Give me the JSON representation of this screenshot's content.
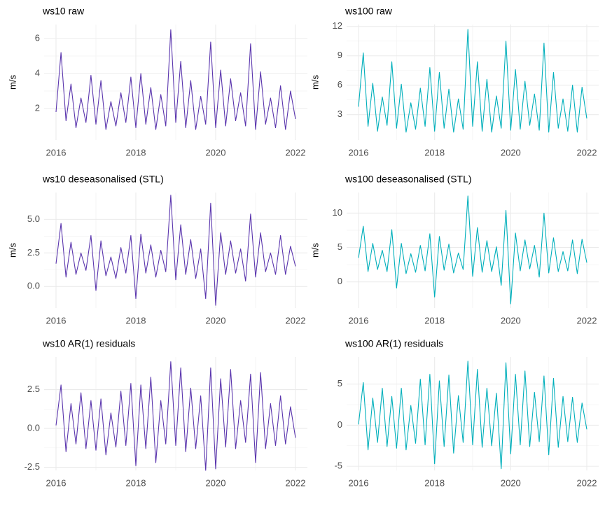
{
  "chart_data": [
    {
      "type": "line",
      "title": "ws10 raw",
      "y_label": "m/s",
      "color": "#5a35ad",
      "x": [
        2016,
        2016.125,
        2016.25,
        2016.375,
        2016.5,
        2016.625,
        2016.75,
        2016.875,
        2017,
        2017.125,
        2017.25,
        2017.375,
        2017.5,
        2017.625,
        2017.75,
        2017.875,
        2018,
        2018.125,
        2018.25,
        2018.375,
        2018.5,
        2018.625,
        2018.75,
        2018.875,
        2019,
        2019.125,
        2019.25,
        2019.375,
        2019.5,
        2019.625,
        2019.75,
        2019.875,
        2020,
        2020.125,
        2020.25,
        2020.375,
        2020.5,
        2020.625,
        2020.75,
        2020.875,
        2021,
        2021.125,
        2021.25,
        2021.375,
        2021.5,
        2021.625,
        2021.75,
        2021.875,
        2022
      ],
      "values": [
        1.8,
        5.2,
        1.3,
        3.4,
        0.9,
        2.6,
        1.2,
        3.9,
        1.1,
        3.6,
        0.8,
        2.4,
        1.0,
        2.9,
        1.2,
        3.8,
        0.9,
        4.0,
        1.1,
        3.2,
        0.8,
        2.8,
        1.0,
        6.5,
        1.2,
        4.7,
        0.9,
        3.6,
        0.8,
        2.7,
        1.1,
        5.8,
        0.9,
        4.2,
        1.0,
        3.7,
        1.3,
        2.9,
        1.0,
        5.7,
        0.8,
        4.1,
        1.1,
        2.6,
        0.9,
        3.3,
        0.8,
        3.0,
        1.4
      ],
      "xlim": [
        2016,
        2022
      ],
      "xticks": [
        2016,
        2018,
        2020,
        2022
      ],
      "ylim": [
        0.2,
        6.8
      ],
      "yticks": [
        2,
        4,
        6
      ],
      "grid": true
    },
    {
      "type": "line",
      "title": "ws100 raw",
      "y_label": "m/s",
      "color": "#00afbb",
      "x": [
        2016,
        2016.125,
        2016.25,
        2016.375,
        2016.5,
        2016.625,
        2016.75,
        2016.875,
        2017,
        2017.125,
        2017.25,
        2017.375,
        2017.5,
        2017.625,
        2017.75,
        2017.875,
        2018,
        2018.125,
        2018.25,
        2018.375,
        2018.5,
        2018.625,
        2018.75,
        2018.875,
        2019,
        2019.125,
        2019.25,
        2019.375,
        2019.5,
        2019.625,
        2019.75,
        2019.875,
        2020,
        2020.125,
        2020.25,
        2020.375,
        2020.5,
        2020.625,
        2020.75,
        2020.875,
        2021,
        2021.125,
        2021.25,
        2021.375,
        2021.5,
        2021.625,
        2021.75,
        2021.875,
        2022
      ],
      "values": [
        3.8,
        9.3,
        1.8,
        6.2,
        1.3,
        4.8,
        1.9,
        8.4,
        1.6,
        6.1,
        1.2,
        4.2,
        1.5,
        5.7,
        1.8,
        7.8,
        1.3,
        7.3,
        1.6,
        5.6,
        1.2,
        4.6,
        1.5,
        11.7,
        1.8,
        8.4,
        1.3,
        6.6,
        1.2,
        4.9,
        1.6,
        10.5,
        1.4,
        7.6,
        1.5,
        6.4,
        1.9,
        5.1,
        1.4,
        10.3,
        1.2,
        7.3,
        1.6,
        4.6,
        1.3,
        6.0,
        1.2,
        5.8,
        2.6
      ],
      "xlim": [
        2016,
        2022
      ],
      "xticks": [
        2016,
        2018,
        2020,
        2022
      ],
      "ylim": [
        0.4,
        12.2
      ],
      "yticks": [
        3,
        6,
        9,
        12
      ],
      "grid": true
    },
    {
      "type": "line",
      "title": "ws10 deseasonalised (STL)",
      "y_label": "m/s",
      "color": "#5a35ad",
      "x": [
        2016,
        2016.125,
        2016.25,
        2016.375,
        2016.5,
        2016.625,
        2016.75,
        2016.875,
        2017,
        2017.125,
        2017.25,
        2017.375,
        2017.5,
        2017.625,
        2017.75,
        2017.875,
        2018,
        2018.125,
        2018.25,
        2018.375,
        2018.5,
        2018.625,
        2018.75,
        2018.875,
        2019,
        2019.125,
        2019.25,
        2019.375,
        2019.5,
        2019.625,
        2019.75,
        2019.875,
        2020,
        2020.125,
        2020.25,
        2020.375,
        2020.5,
        2020.625,
        2020.75,
        2020.875,
        2021,
        2021.125,
        2021.25,
        2021.375,
        2021.5,
        2021.625,
        2021.75,
        2021.875,
        2022
      ],
      "values": [
        1.7,
        4.7,
        0.7,
        3.3,
        0.9,
        2.5,
        1.2,
        3.8,
        -0.3,
        3.4,
        0.8,
        2.2,
        0.6,
        2.9,
        1.0,
        3.8,
        -0.9,
        3.9,
        1.0,
        3.1,
        0.7,
        2.7,
        1.1,
        6.8,
        0.5,
        4.6,
        0.9,
        3.5,
        0.6,
        2.8,
        -0.9,
        6.2,
        -1.4,
        4.0,
        0.9,
        3.4,
        1.0,
        2.8,
        0.4,
        5.4,
        0.7,
        4.0,
        1.1,
        2.5,
        0.9,
        3.8,
        0.9,
        3.0,
        1.5
      ],
      "xlim": [
        2016,
        2022
      ],
      "xticks": [
        2016,
        2018,
        2020,
        2022
      ],
      "ylim": [
        -1.6,
        7.0
      ],
      "yticks": [
        {
          "value": 0,
          "label": "0.0"
        },
        2.5,
        {
          "value": 5,
          "label": "5.0"
        }
      ],
      "grid": true
    },
    {
      "type": "line",
      "title": "ws100 deseasonalised (STL)",
      "y_label": "m/s",
      "color": "#00afbb",
      "x": [
        2016,
        2016.125,
        2016.25,
        2016.375,
        2016.5,
        2016.625,
        2016.75,
        2016.875,
        2017,
        2017.125,
        2017.25,
        2017.375,
        2017.5,
        2017.625,
        2017.75,
        2017.875,
        2018,
        2018.125,
        2018.25,
        2018.375,
        2018.5,
        2018.625,
        2018.75,
        2018.875,
        2019,
        2019.125,
        2019.25,
        2019.375,
        2019.5,
        2019.625,
        2019.75,
        2019.875,
        2020,
        2020.125,
        2020.25,
        2020.375,
        2020.5,
        2020.625,
        2020.75,
        2020.875,
        2021,
        2021.125,
        2021.25,
        2021.375,
        2021.5,
        2021.625,
        2021.75,
        2021.875,
        2022
      ],
      "values": [
        3.5,
        8.1,
        1.5,
        5.6,
        1.8,
        4.6,
        1.5,
        7.6,
        -0.9,
        5.6,
        1.2,
        4.1,
        1.4,
        5.3,
        1.6,
        7.0,
        -2.2,
        6.6,
        1.7,
        5.5,
        1.3,
        4.2,
        1.8,
        12.5,
        0.8,
        7.9,
        1.4,
        6.0,
        1.5,
        5.1,
        -0.5,
        10.4,
        -3.2,
        7.1,
        1.6,
        6.1,
        1.9,
        5.3,
        0.7,
        10.0,
        1.3,
        6.4,
        1.5,
        4.4,
        1.6,
        6.1,
        1.2,
        6.2,
        2.8
      ],
      "xlim": [
        2016,
        2022
      ],
      "xticks": [
        2016,
        2018,
        2020,
        2022
      ],
      "ylim": [
        -3.8,
        13
      ],
      "yticks": [
        0,
        5,
        10
      ],
      "grid": true
    },
    {
      "type": "line",
      "title": "ws10 AR(1) residuals",
      "color": "#5a35ad",
      "x": [
        2016,
        2016.125,
        2016.25,
        2016.375,
        2016.5,
        2016.625,
        2016.75,
        2016.875,
        2017,
        2017.125,
        2017.25,
        2017.375,
        2017.5,
        2017.625,
        2017.75,
        2017.875,
        2018,
        2018.125,
        2018.25,
        2018.375,
        2018.5,
        2018.625,
        2018.75,
        2018.875,
        2019,
        2019.125,
        2019.25,
        2019.375,
        2019.5,
        2019.625,
        2019.75,
        2019.875,
        2020,
        2020.125,
        2020.25,
        2020.375,
        2020.5,
        2020.625,
        2020.75,
        2020.875,
        2021,
        2021.125,
        2021.25,
        2021.375,
        2021.5,
        2021.625,
        2021.75,
        2021.875,
        2022
      ],
      "values": [
        0.2,
        2.8,
        -1.5,
        1.6,
        -1.0,
        2.3,
        -1.3,
        1.8,
        -1.4,
        1.9,
        -1.7,
        1.0,
        -1.2,
        2.4,
        -1.1,
        2.9,
        -2.4,
        2.8,
        -1.3,
        3.3,
        -2.2,
        1.8,
        -1.0,
        4.3,
        -1.1,
        3.9,
        -1.5,
        2.6,
        -1.3,
        2.1,
        -2.7,
        3.9,
        -2.6,
        3.2,
        -1.2,
        3.8,
        -1.3,
        1.8,
        -0.9,
        3.5,
        -2.2,
        3.6,
        -1.3,
        1.6,
        -1.1,
        2.1,
        -1.0,
        1.4,
        -0.6
      ],
      "xlim": [
        2016,
        2022
      ],
      "xticks": [
        2016,
        2018,
        2020,
        2022
      ],
      "ylim": [
        -2.7,
        4.6
      ],
      "yticks": [
        -2.5,
        {
          "value": 0,
          "label": "0.0"
        },
        2.5
      ],
      "grid": true
    },
    {
      "type": "line",
      "title": "ws100 AR(1) residuals",
      "color": "#00afbb",
      "x": [
        2016,
        2016.125,
        2016.25,
        2016.375,
        2016.5,
        2016.625,
        2016.75,
        2016.875,
        2017,
        2017.125,
        2017.25,
        2017.375,
        2017.5,
        2017.625,
        2017.75,
        2017.875,
        2018,
        2018.125,
        2018.25,
        2018.375,
        2018.5,
        2018.625,
        2018.75,
        2018.875,
        2019,
        2019.125,
        2019.25,
        2019.375,
        2019.5,
        2019.625,
        2019.75,
        2019.875,
        2020,
        2020.125,
        2020.25,
        2020.375,
        2020.5,
        2020.625,
        2020.75,
        2020.875,
        2021,
        2021.125,
        2021.25,
        2021.375,
        2021.5,
        2021.625,
        2021.75,
        2021.875,
        2022
      ],
      "values": [
        0.1,
        5.2,
        -3.0,
        3.3,
        -2.1,
        4.5,
        -2.6,
        3.5,
        -2.8,
        4.5,
        -3.0,
        2.4,
        -2.2,
        5.6,
        -2.4,
        6.2,
        -4.7,
        5.4,
        -2.6,
        6.1,
        -3.4,
        3.6,
        -2.1,
        7.8,
        -2.4,
        6.8,
        -2.7,
        4.5,
        -2.5,
        3.9,
        -5.3,
        7.6,
        -3.5,
        6.2,
        -2.4,
        6.6,
        -2.6,
        4.0,
        -2.0,
        6.0,
        -3.6,
        5.7,
        -2.7,
        3.5,
        -2.0,
        3.4,
        -2.1,
        2.7,
        -0.5
      ],
      "xlim": [
        2016,
        2022
      ],
      "xticks": [
        2016,
        2018,
        2020,
        2022
      ],
      "ylim": [
        -5.5,
        8.3
      ],
      "yticks": [
        -5,
        0,
        5
      ],
      "grid": true
    }
  ]
}
